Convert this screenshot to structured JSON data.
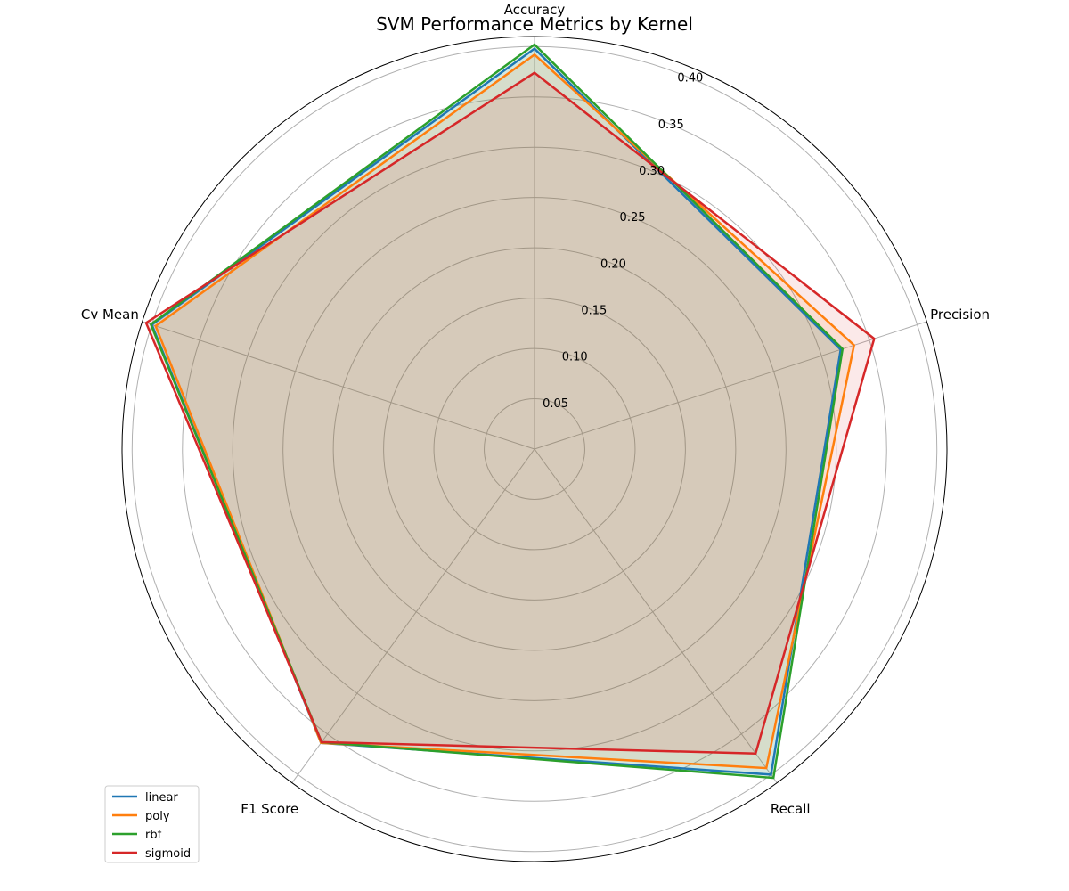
{
  "chart_data": {
    "type": "radar",
    "title": "SVM Performance Metrics by Kernel",
    "axes": [
      "Accuracy",
      "Precision",
      "Recall",
      "F1 Score",
      "Cv Mean"
    ],
    "r_ticks": [
      0.05,
      0.1,
      0.15,
      0.2,
      0.25,
      0.3,
      0.35,
      0.4
    ],
    "r_tick_labels": [
      "0.05",
      "0.10",
      "0.15",
      "0.20",
      "0.25",
      "0.30",
      "0.35",
      "0.40"
    ],
    "rlim": [
      0,
      0.41
    ],
    "grid": true,
    "legend_position": "bottom-left",
    "series": [
      {
        "name": "linear",
        "color": "#1f77b4",
        "values": [
          0.398,
          0.32,
          0.4,
          0.361,
          0.4
        ]
      },
      {
        "name": "poly",
        "color": "#ff7f0e",
        "values": [
          0.392,
          0.334,
          0.392,
          0.361,
          0.396
        ]
      },
      {
        "name": "rbf",
        "color": "#2ca02c",
        "values": [
          0.402,
          0.322,
          0.404,
          0.36,
          0.401
        ]
      },
      {
        "name": "sigmoid",
        "color": "#d62728",
        "values": [
          0.374,
          0.355,
          0.374,
          0.36,
          0.406
        ]
      }
    ]
  }
}
